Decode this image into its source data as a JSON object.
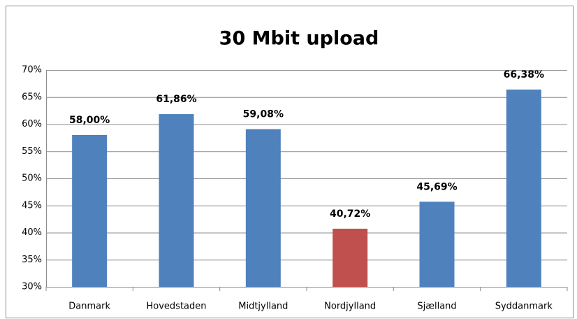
{
  "chart_data": {
    "type": "bar",
    "title": "30 Mbit upload",
    "categories": [
      "Danmark",
      "Hovedstaden",
      "Midtjylland",
      "Nordjylland",
      "Sjælland",
      "Syddanmark"
    ],
    "values": [
      58.0,
      61.86,
      59.08,
      40.72,
      45.69,
      66.38
    ],
    "value_labels": [
      "58,00%",
      "61,86%",
      "59,08%",
      "40,72%",
      "45,69%",
      "66,38%"
    ],
    "colors": [
      "#4f81bd",
      "#4f81bd",
      "#4f81bd",
      "#c0504d",
      "#4f81bd",
      "#4f81bd"
    ],
    "ylim": [
      30,
      70
    ],
    "yticks": [
      {
        "value": 30,
        "label": "30%"
      },
      {
        "value": 35,
        "label": "35%"
      },
      {
        "value": 40,
        "label": "40%"
      },
      {
        "value": 45,
        "label": "45%"
      },
      {
        "value": 50,
        "label": "50%"
      },
      {
        "value": 55,
        "label": "55%"
      },
      {
        "value": 60,
        "label": "60%"
      },
      {
        "value": 65,
        "label": "65%"
      },
      {
        "value": 70,
        "label": "70%"
      }
    ],
    "grid": true
  }
}
